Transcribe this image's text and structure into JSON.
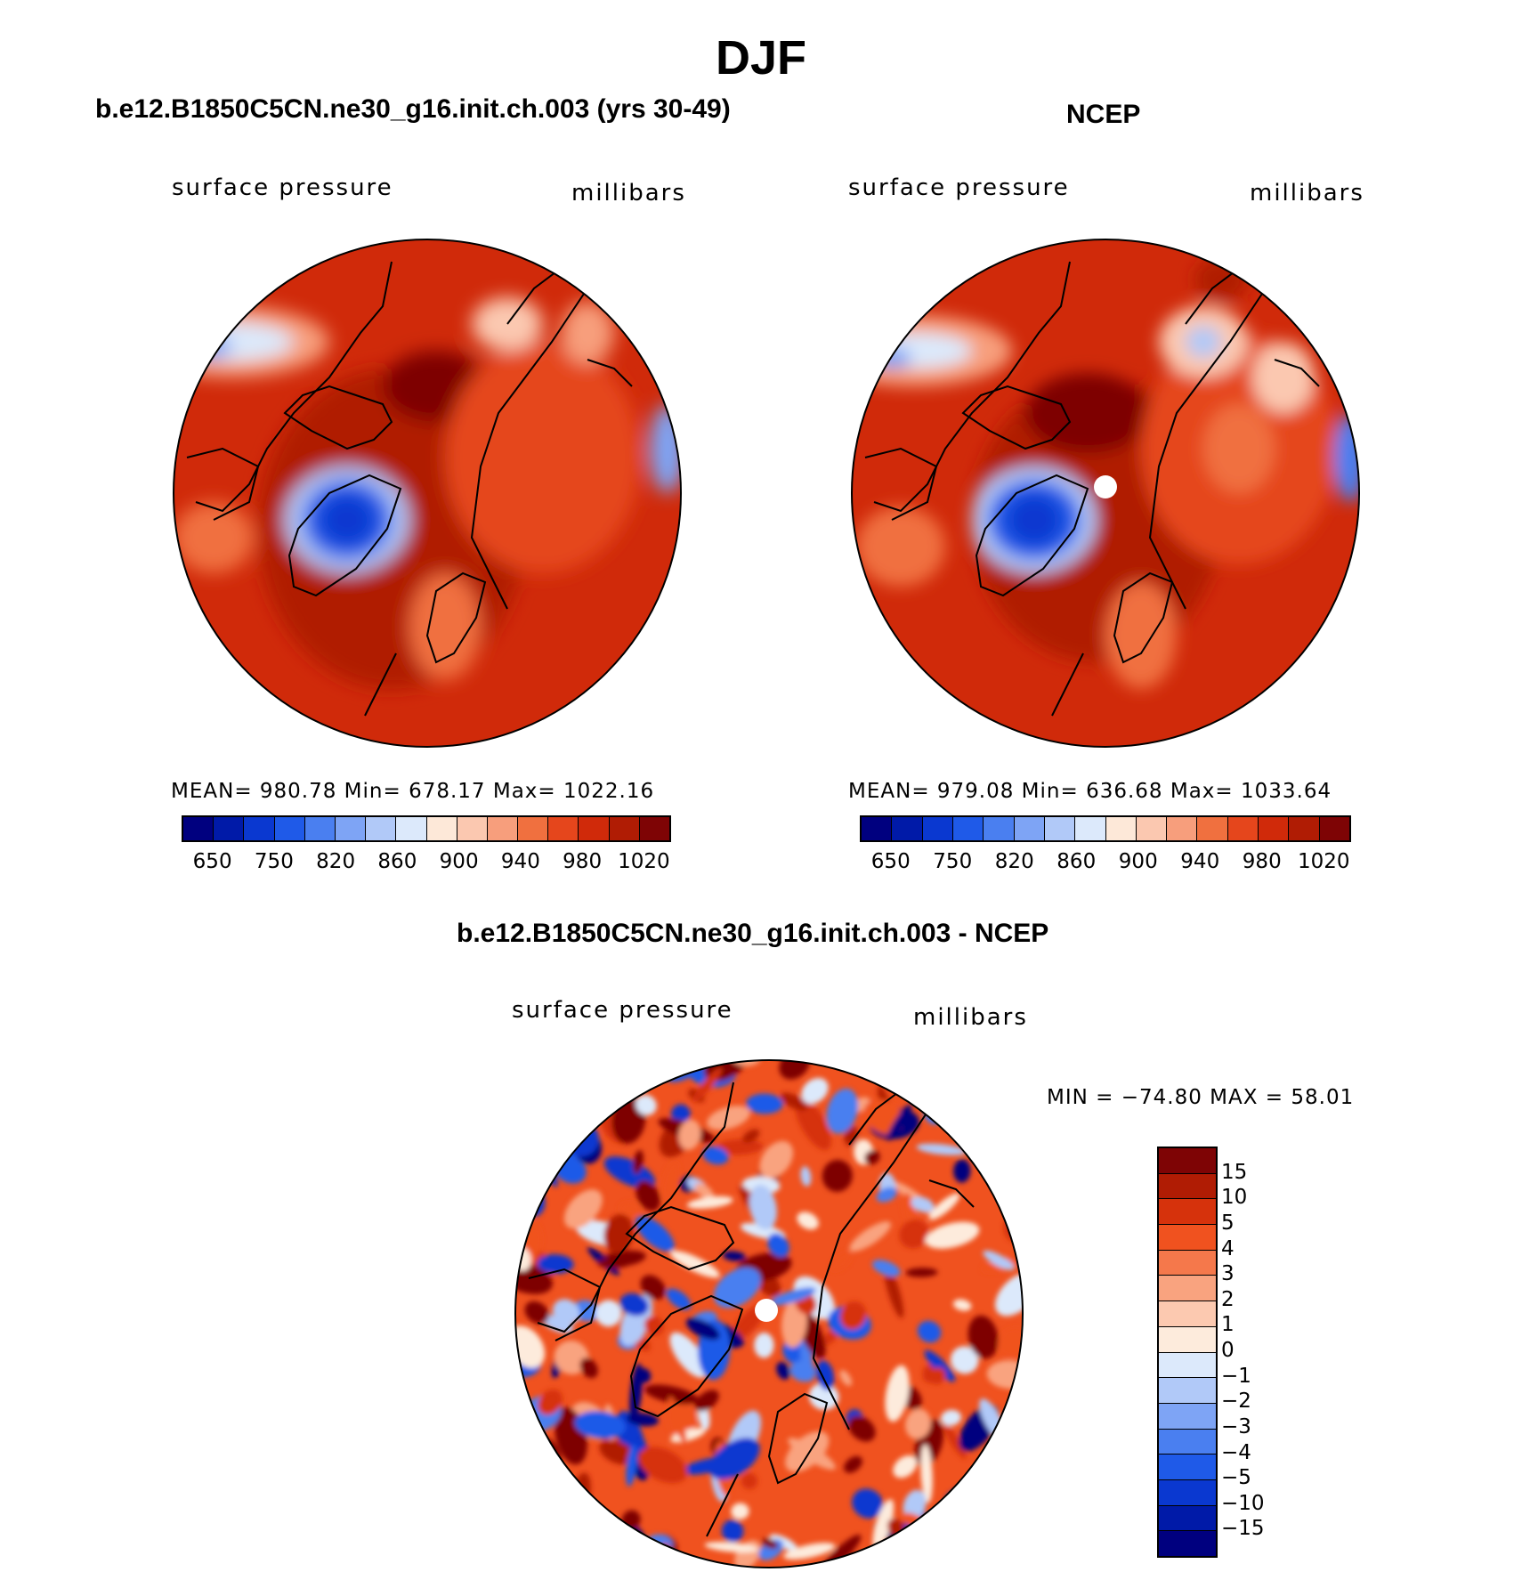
{
  "main_title": "DJF",
  "panels": [
    {
      "title": "b.e12.B1850C5CN.ne30_g16.init.ch.003 (yrs 30-49)",
      "left_label": "surface pressure",
      "right_label": "millibars",
      "stats": "MEAN=  980.78   Min=  678.17   Max=  1022.16"
    },
    {
      "title": "NCEP",
      "left_label": "surface pressure",
      "right_label": "millibars",
      "stats": "MEAN=  979.08   Min=  636.68   Max=  1033.64"
    },
    {
      "title": "b.e12.B1850C5CN.ne30_g16.init.ch.003 - NCEP",
      "left_label": "surface pressure",
      "right_label": "millibars",
      "stats": "MIN = −74.80  MAX =   58.01"
    }
  ],
  "pressure_colorbar": {
    "colors": [
      "#00007f",
      "#001aa8",
      "#0a38d0",
      "#1f5ae8",
      "#4a7ff0",
      "#7ea4f5",
      "#b1c9f8",
      "#dce9fb",
      "#fde8d8",
      "#fbc8b0",
      "#f79e7c",
      "#f0703f",
      "#e5461c",
      "#d02a0a",
      "#b01c04",
      "#7e0405"
    ],
    "tick_labels": [
      "650",
      "750",
      "820",
      "860",
      "900",
      "940",
      "980",
      "1020"
    ]
  },
  "difference_colorbar": {
    "colors": [
      "#7e0405",
      "#b01c04",
      "#d6320c",
      "#f0521f",
      "#f5784b",
      "#f9a37f",
      "#fcc9b0",
      "#fdebdc",
      "#dce9fb",
      "#b1c9f8",
      "#7ea4f5",
      "#4a7ff0",
      "#1f5ae8",
      "#0a38d0",
      "#001aa8",
      "#00007f"
    ],
    "tick_labels": [
      "15",
      "10",
      "5",
      "4",
      "3",
      "2",
      "1",
      "0",
      "−1",
      "−2",
      "−3",
      "−4",
      "−5",
      "−10",
      "−15"
    ]
  }
}
